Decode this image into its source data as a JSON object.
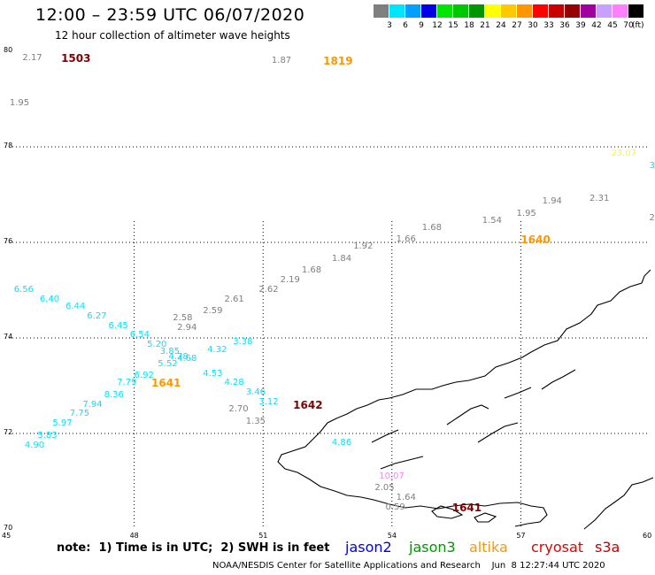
{
  "title": "12:00 – 23:59 UTC 06/07/2020",
  "subtitle": "12 hour collection of altimeter wave heights",
  "legend": {
    "unit": "(ft)",
    "items": [
      {
        "label": "3",
        "color": "#7f7f7f"
      },
      {
        "label": "6",
        "color": "#00e5ff"
      },
      {
        "label": "9",
        "color": "#00a0ff"
      },
      {
        "label": "12",
        "color": "#0000e6"
      },
      {
        "label": "15",
        "color": "#00e600"
      },
      {
        "label": "18",
        "color": "#00c800"
      },
      {
        "label": "21",
        "color": "#009600"
      },
      {
        "label": "24",
        "color": "#ffff00"
      },
      {
        "label": "27",
        "color": "#ffc800"
      },
      {
        "label": "30",
        "color": "#ff9600"
      },
      {
        "label": "33",
        "color": "#ff0000"
      },
      {
        "label": "36",
        "color": "#c80000"
      },
      {
        "label": "39",
        "color": "#960000"
      },
      {
        "label": "42",
        "color": "#a000a0"
      },
      {
        "label": "45",
        "color": "#c8a0ff"
      },
      {
        "label": "70",
        "color": "#ff80ff"
      },
      {
        "label": "",
        "color": "#000000"
      }
    ]
  },
  "axes": {
    "lon": {
      "min": 45,
      "max": 60,
      "ticks": [
        "45",
        "48",
        "51",
        "54",
        "57",
        "60"
      ]
    },
    "lat": {
      "min": 70,
      "max": 80,
      "ticks": [
        "70",
        "72",
        "74",
        "76",
        "78",
        "80"
      ]
    }
  },
  "wave_labels": [
    {
      "text": "2.17",
      "lon": 45.4,
      "lat": 79.85,
      "color": "#7f7f7f"
    },
    {
      "text": "1.95",
      "lon": 45.1,
      "lat": 78.9,
      "color": "#7f7f7f"
    },
    {
      "text": "1.87",
      "lon": 51.2,
      "lat": 79.8,
      "color": "#7f7f7f"
    },
    {
      "text": "23.07",
      "lon": 59.1,
      "lat": 77.85,
      "color": "#ffff00"
    },
    {
      "text": "3",
      "lon": 60.0,
      "lat": 77.6,
      "color": "#00e5ff"
    },
    {
      "text": "2",
      "lon": 60.0,
      "lat": 76.5,
      "color": "#7f7f7f"
    },
    {
      "text": "2.31",
      "lon": 58.6,
      "lat": 76.9,
      "color": "#7f7f7f"
    },
    {
      "text": "1.94",
      "lon": 57.5,
      "lat": 76.85,
      "color": "#7f7f7f"
    },
    {
      "text": "1.95",
      "lon": 56.9,
      "lat": 76.6,
      "color": "#7f7f7f"
    },
    {
      "text": "1.54",
      "lon": 56.1,
      "lat": 76.45,
      "color": "#7f7f7f"
    },
    {
      "text": "1.68",
      "lon": 54.7,
      "lat": 76.3,
      "color": "#7f7f7f"
    },
    {
      "text": "1.66",
      "lon": 54.1,
      "lat": 76.05,
      "color": "#7f7f7f"
    },
    {
      "text": "1.92",
      "lon": 53.1,
      "lat": 75.9,
      "color": "#7f7f7f"
    },
    {
      "text": "1.84",
      "lon": 52.6,
      "lat": 75.65,
      "color": "#7f7f7f"
    },
    {
      "text": "1.68",
      "lon": 51.9,
      "lat": 75.4,
      "color": "#7f7f7f"
    },
    {
      "text": "2.19",
      "lon": 51.4,
      "lat": 75.2,
      "color": "#7f7f7f"
    },
    {
      "text": "2.62",
      "lon": 50.9,
      "lat": 75.0,
      "color": "#7f7f7f"
    },
    {
      "text": "2.61",
      "lon": 50.1,
      "lat": 74.8,
      "color": "#7f7f7f"
    },
    {
      "text": "2.59",
      "lon": 49.6,
      "lat": 74.55,
      "color": "#7f7f7f"
    },
    {
      "text": "2.58",
      "lon": 48.9,
      "lat": 74.4,
      "color": "#7f7f7f"
    },
    {
      "text": "2.94",
      "lon": 49.0,
      "lat": 74.2,
      "color": "#7f7f7f"
    },
    {
      "text": "2.70",
      "lon": 50.2,
      "lat": 72.5,
      "color": "#7f7f7f"
    },
    {
      "text": "1.35",
      "lon": 50.6,
      "lat": 72.25,
      "color": "#7f7f7f"
    },
    {
      "text": "2.05",
      "lon": 53.6,
      "lat": 70.85,
      "color": "#7f7f7f"
    },
    {
      "text": "1.64",
      "lon": 54.1,
      "lat": 70.65,
      "color": "#7f7f7f"
    },
    {
      "text": "0.59",
      "lon": 53.85,
      "lat": 70.45,
      "color": "#7f7f7f"
    },
    {
      "text": "10.07",
      "lon": 53.7,
      "lat": 71.1,
      "color": "#ff80ff"
    },
    {
      "text": "6.56",
      "lon": 45.2,
      "lat": 75.0,
      "color": "#00e5ff"
    },
    {
      "text": "6.40",
      "lon": 45.8,
      "lat": 74.8,
      "color": "#00e5ff"
    },
    {
      "text": "6.44",
      "lon": 46.4,
      "lat": 74.65,
      "color": "#00e5ff"
    },
    {
      "text": "6.27",
      "lon": 46.9,
      "lat": 74.45,
      "color": "#00e5ff"
    },
    {
      "text": "6.45",
      "lon": 47.4,
      "lat": 74.25,
      "color": "#00e5ff"
    },
    {
      "text": "6.54",
      "lon": 47.9,
      "lat": 74.05,
      "color": "#00e5ff"
    },
    {
      "text": "5.20",
      "lon": 48.3,
      "lat": 73.85,
      "color": "#00e5ff"
    },
    {
      "text": "3.85",
      "lon": 48.6,
      "lat": 73.7,
      "color": "#00e5ff"
    },
    {
      "text": "4.78",
      "lon": 48.8,
      "lat": 73.6,
      "color": "#00e5ff"
    },
    {
      "text": "4.68",
      "lon": 49.0,
      "lat": 73.55,
      "color": "#00e5ff"
    },
    {
      "text": "5.52",
      "lon": 48.55,
      "lat": 73.45,
      "color": "#00e5ff"
    },
    {
      "text": "6.92",
      "lon": 48.0,
      "lat": 73.2,
      "color": "#00e5ff"
    },
    {
      "text": "7.79",
      "lon": 47.6,
      "lat": 73.05,
      "color": "#00e5ff"
    },
    {
      "text": "8.36",
      "lon": 47.3,
      "lat": 72.8,
      "color": "#00e5ff"
    },
    {
      "text": "7.94",
      "lon": 46.8,
      "lat": 72.6,
      "color": "#00e5ff"
    },
    {
      "text": "7.75",
      "lon": 46.5,
      "lat": 72.4,
      "color": "#00e5ff"
    },
    {
      "text": "5.97",
      "lon": 46.1,
      "lat": 72.2,
      "color": "#00e5ff"
    },
    {
      "text": "5.83",
      "lon": 45.75,
      "lat": 71.95,
      "color": "#00e5ff"
    },
    {
      "text": "4.90",
      "lon": 45.45,
      "lat": 71.75,
      "color": "#00e5ff"
    },
    {
      "text": "4.32",
      "lon": 49.7,
      "lat": 73.75,
      "color": "#00e5ff"
    },
    {
      "text": "3.38",
      "lon": 50.3,
      "lat": 73.9,
      "color": "#00e5ff"
    },
    {
      "text": "4.53",
      "lon": 49.6,
      "lat": 73.25,
      "color": "#00e5ff"
    },
    {
      "text": "4.28",
      "lon": 50.1,
      "lat": 73.05,
      "color": "#00e5ff"
    },
    {
      "text": "3.46",
      "lon": 50.6,
      "lat": 72.85,
      "color": "#00e5ff"
    },
    {
      "text": "3.12",
      "lon": 50.9,
      "lat": 72.65,
      "color": "#00e5ff"
    },
    {
      "text": "4.86",
      "lon": 52.6,
      "lat": 71.8,
      "color": "#00e5ff"
    }
  ],
  "pass_labels": [
    {
      "text": "1503",
      "lon": 46.3,
      "lat": 79.85,
      "color": "#800000"
    },
    {
      "text": "1819",
      "lon": 52.4,
      "lat": 79.8,
      "color": "#ff9600"
    },
    {
      "text": "1640",
      "lon": 57.0,
      "lat": 76.05,
      "color": "#ff9600"
    },
    {
      "text": "1641",
      "lon": 48.4,
      "lat": 73.05,
      "color": "#ff9600"
    },
    {
      "text": "1642",
      "lon": 51.7,
      "lat": 72.6,
      "color": "#800000"
    },
    {
      "text": "1641",
      "lon": 55.4,
      "lat": 70.45,
      "color": "#800000"
    }
  ],
  "note": "note:  1) Time is in UTC;  2) SWH is in feet",
  "satellites": [
    {
      "name": "jason2",
      "color": "#0000e6"
    },
    {
      "name": "jason3",
      "color": "#009600"
    },
    {
      "name": "altika",
      "color": "#ff9600"
    },
    {
      "name": "cryosat",
      "color": "#e60000"
    },
    {
      "name": "s3a",
      "color": "#c80000"
    }
  ],
  "credit": "NOAA/NESDIS Center for Satellite Applications and Research    Jun  8 12:27:44 UTC 2020"
}
